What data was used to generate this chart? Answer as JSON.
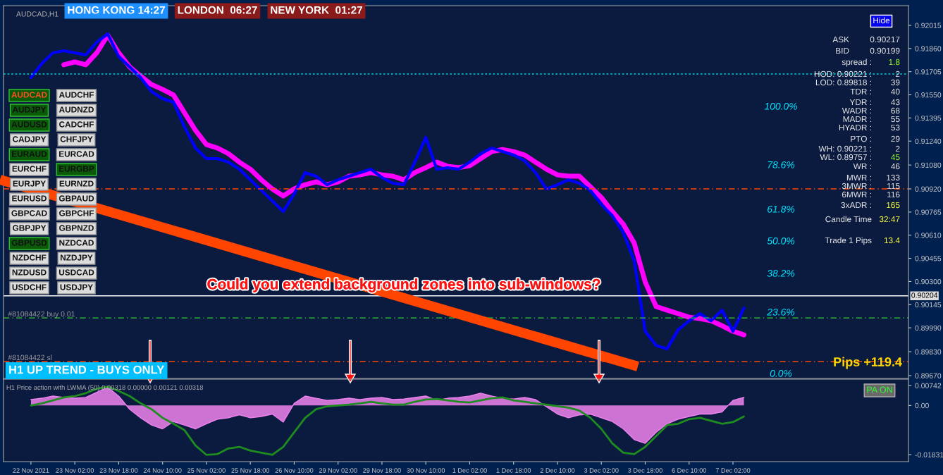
{
  "chart_data": [
    {
      "type": "line",
      "title": "AUDCAD,H1",
      "categories": [
        null,
        null,
        null,
        null,
        null,
        null,
        null,
        null,
        null,
        null,
        null,
        null,
        null,
        null,
        null,
        null,
        null,
        null,
        null,
        null,
        null,
        null,
        null,
        null,
        null,
        null,
        null,
        null,
        null,
        null,
        null,
        null,
        null,
        null,
        null,
        null,
        null,
        null,
        null,
        null,
        null,
        null,
        null,
        null,
        null,
        null,
        null,
        null,
        null,
        null,
        null,
        null,
        null,
        null,
        null,
        null,
        null,
        null,
        null,
        null,
        null,
        null,
        null,
        null,
        null,
        null
      ],
      "series": [
        {
          "color": "#ff00ff",
          "values": [
            null,
            null,
            null,
            0.91751,
            0.9177,
            0.91751,
            0.91831,
            0.91949,
            0.91831,
            0.91737,
            0.91675,
            0.91619,
            0.91586,
            0.91548,
            0.9143,
            0.91312,
            0.91217,
            0.91194,
            0.91156,
            0.91099,
            0.91052,
            0.90981,
            0.9092,
            0.90873,
            0.9092,
            0.90948,
            0.90967,
            0.90948,
            0.90967,
            0.91005,
            0.91014,
            0.91029,
            0.91014,
            0.91005,
            0.90981,
            0.91029,
            0.91062,
            0.91099,
            0.91071,
            0.91062,
            0.91076,
            0.91123,
            0.9117,
            0.91184,
            0.9117,
            0.91147,
            0.91099,
            0.91052,
            0.91014,
            0.91005,
            0.91005,
            0.90934,
            0.90863,
            0.90769,
            0.90684,
            0.90557,
            0.90297,
            0.90132,
            0.90108,
            0.90085,
            0.90061,
            0.90052,
            0.90037,
            0.90004,
            0.89967,
            0.89943
          ]
        },
        {
          "color": "#0000ff",
          "values": [
            0.91666,
            0.9176,
            0.91831,
            0.91845,
            0.91831,
            0.91817,
            0.91902,
            0.91958,
            0.91807,
            0.91737,
            0.91666,
            0.91571,
            0.91524,
            0.91501,
            0.91335,
            0.91194,
            0.91123,
            0.91123,
            0.91099,
            0.91052,
            0.90981,
            0.90911,
            0.9084,
            0.90769,
            0.90887,
            0.91029,
            0.91005,
            0.90948,
            0.90981,
            0.91005,
            0.91029,
            0.91052,
            0.90996,
            0.90958,
            0.90948,
            0.91099,
            0.91265,
            0.91052,
            0.91062,
            0.91052,
            0.91099,
            0.91156,
            0.91194,
            0.9117,
            0.91147,
            0.91109,
            0.91029,
            0.9092,
            0.90948,
            0.90981,
            0.90958,
            0.90911,
            0.90816,
            0.90741,
            0.90627,
            0.90439,
            0.89967,
            0.89872,
            0.89849,
            0.89976,
            0.90037,
            0.90085,
            0.90037,
            0.90108,
            0.89967,
            0.90122
          ]
        }
      ],
      "ylim": [
        0.89651,
        0.92147
      ],
      "yticks": [
        0.92015,
        {
          "value": 0.9186,
          "label": "0.91860"
        },
        0.91705,
        {
          "value": 0.9155,
          "label": "0.91550"
        },
        0.91395,
        {
          "value": 0.9124,
          "label": "0.91240"
        },
        {
          "value": 0.9108,
          "label": "0.91080"
        },
        {
          "value": 0.9092,
          "label": "0.90920"
        },
        0.90765,
        {
          "value": 0.9061,
          "label": "0.90610"
        },
        0.90455,
        {
          "value": 0.903,
          "label": "0.90300"
        },
        0.90145,
        {
          "value": 0.8999,
          "label": "0.89990"
        },
        {
          "value": 0.8983,
          "label": "0.89830"
        },
        {
          "value": 0.8967,
          "label": "0.89670"
        }
      ],
      "tick_labels": "y",
      "line_style": "solid",
      "ref_lines": [
        {
          "axis": "y",
          "value": 0.90204,
          "label": "0.90204",
          "color": "#ffffff",
          "line_style": "solid"
        },
        {
          "axis": "y",
          "value": 0.90056,
          "label": "#81084422 buy 0.01",
          "color": "#32cd32",
          "line_style": "dashed"
        },
        {
          "axis": "y",
          "value": 0.89764,
          "label": "#81084422 sl",
          "color": "#ff4500",
          "line_style": "dashed"
        },
        {
          "axis": "y",
          "value": 0.9092,
          "color": "#ff4500",
          "line_style": "dashed"
        },
        {
          "axis": "y",
          "value": 0.91689,
          "color": "#00ced1",
          "line_style": "dotted"
        }
      ],
      "annotations": [
        "HONG KONG 14:27",
        "LONDON  06:27",
        "NEW YORK  01:27",
        "AUDCAD",
        "AUDCHF",
        "AUDJPY",
        "AUDNZD",
        "AUDUSD",
        "CADCHF",
        "CADJPY",
        "CHFJPY",
        "EURAUD",
        "EURCAD",
        "EURCHF",
        "EURGBP",
        "EURJPY",
        "EURNZD",
        "EURUSD",
        "GBPAUD",
        "GBPCAD",
        "GBPCHF",
        "GBPJPY",
        "GBPNZD",
        "GBPUSD",
        "NZDCAD",
        "NZDCHF",
        "NZDJPY",
        "NZDUSD",
        "USDCAD",
        "USDCHF",
        "USDJPY",
        "Hide",
        "ASK",
        "0.90217",
        "BID",
        "0.90199",
        "spread :",
        "1.8",
        "HOD: 0.90221 :",
        "2",
        "LOD: 0.89818 :",
        "39",
        "TDR :",
        "40",
        "YDR :",
        "43",
        "WADR :",
        "68",
        "MADR :",
        "55",
        "HYADR :",
        "53",
        "PTO :",
        "29",
        "WH: 0.90221 :",
        "2",
        "WL: 0.89757 :",
        "45",
        "WR :",
        "46",
        "MWR :",
        "133",
        "3MWR :",
        "115",
        "6MWR :",
        "116",
        "3xADR :",
        "165",
        "Candle Time",
        "32:47",
        "Trade 1 Pips",
        "13.4",
        "Could you extend background zones into sub-windows?",
        "H1 UP TREND - BUYS ONLY",
        "Pips +119.4",
        "100.0%",
        "78.6%",
        "61.8%",
        "50.0%",
        "38.2%",
        "23.6%",
        "0.0%"
      ]
    },
    {
      "type": "line",
      "title": "H1 Price action with LWMA (50) 0.00318 0.00000 0.00121 0.00318",
      "categories": [
        "22 Nov 2021",
        null,
        null,
        null,
        "23 Nov 02:00",
        null,
        null,
        null,
        "23 Nov 18:00",
        null,
        null,
        null,
        "24 Nov 10:00",
        null,
        null,
        null,
        "25 Nov 02:00",
        null,
        null,
        null,
        "25 Nov 18:00",
        null,
        null,
        null,
        "26 Nov 10:00",
        null,
        null,
        null,
        "29 Nov 02:00",
        null,
        null,
        null,
        "29 Nov 18:00",
        null,
        null,
        null,
        "30 Nov 10:00",
        null,
        null,
        null,
        "1 Dec 02:00",
        null,
        null,
        null,
        "1 Dec 18:00",
        null,
        null,
        null,
        "2 Dec 10:00",
        null,
        null,
        null,
        "3 Dec 02:00",
        null,
        null,
        null,
        "3 Dec 18:00",
        null,
        null,
        null,
        "6 Dec 10:00",
        null,
        null,
        null,
        "7 Dec 02:00",
        null
      ],
      "series": [
        {
          "type": "area",
          "color": "#ee82ee",
          "values": [
            0.0022,
            0.0027,
            0.0035,
            0.003,
            0.0027,
            0.003,
            0.0049,
            0.0068,
            0.0035,
            -0.0014,
            -0.0046,
            -0.0073,
            -0.0087,
            -0.006,
            -0.0073,
            -0.0087,
            -0.0068,
            -0.0051,
            -0.0046,
            -0.0035,
            -0.0046,
            -0.0041,
            -0.0032,
            -0.0062,
            0.0008,
            0.0035,
            0.0027,
            0.0019,
            0.0022,
            0.0027,
            0.0022,
            0.0027,
            0.003,
            0.0022,
            0.0024,
            0.003,
            0.0035,
            0.0019,
            0.0027,
            0.003,
            0.0035,
            0.0046,
            0.0035,
            0.0027,
            0.0024,
            0.003,
            0.0022,
            -0.0005,
            -0.0032,
            -0.0046,
            -0.0035,
            -0.0032,
            -0.0046,
            -0.006,
            -0.0087,
            -0.0127,
            -0.0141,
            -0.01,
            -0.0068,
            -0.0051,
            -0.0041,
            -0.0032,
            -0.0032,
            -0.0024,
            0.0019,
            0.003
          ]
        },
        {
          "type": "line",
          "color": "#1e8c1e",
          "values": [
            0.0,
            0.0008,
            0.0019,
            0.003,
            0.0035,
            0.0046,
            0.0062,
            0.007,
            0.0054,
            0.0035,
            0.0008,
            -0.0014,
            -0.0046,
            -0.0068,
            -0.0092,
            -0.0149,
            -0.0184,
            -0.0181,
            -0.016,
            -0.0154,
            -0.0168,
            -0.0176,
            -0.0184,
            -0.0154,
            -0.01,
            -0.0046,
            -0.0014,
            -0.0003,
            0.0,
            0.0003,
            0.0008,
            0.0014,
            0.0008,
            0.0003,
            0.0003,
            0.0014,
            0.0022,
            0.0024,
            0.0019,
            0.0014,
            0.0011,
            0.0019,
            0.0027,
            0.003,
            0.0019,
            0.0014,
            0.0008,
            0.0003,
            -0.0003,
            -0.0008,
            -0.0019,
            -0.0046,
            -0.0087,
            -0.0141,
            -0.0176,
            -0.0181,
            -0.0154,
            -0.0114,
            -0.0073,
            -0.0068,
            -0.0051,
            -0.0046,
            -0.0057,
            -0.0068,
            -0.0062,
            -0.0041
          ]
        }
      ],
      "ylim": [
        -0.0209,
        0.0098
      ],
      "yticks": [
        0.00742,
        {
          "value": 0,
          "label": "0.00"
        },
        -0.01831
      ],
      "line_style": "solid",
      "annotations": [
        "PA ON"
      ]
    }
  ]
}
